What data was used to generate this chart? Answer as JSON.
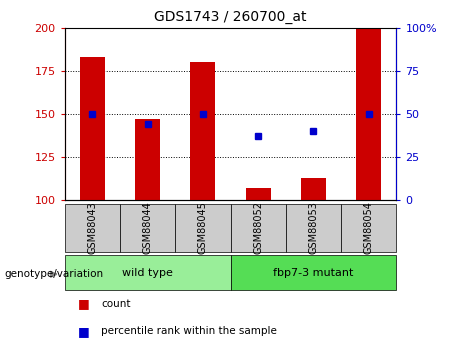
{
  "title": "GDS1743 / 260700_at",
  "categories": [
    "GSM88043",
    "GSM88044",
    "GSM88045",
    "GSM88052",
    "GSM88053",
    "GSM88054"
  ],
  "count_values": [
    183,
    147,
    180,
    107,
    113,
    200
  ],
  "percentile_values": [
    150,
    144,
    150,
    137,
    140,
    150
  ],
  "base": 100,
  "ylim_left": [
    100,
    200
  ],
  "ylim_right": [
    0,
    100
  ],
  "yticks_left": [
    100,
    125,
    150,
    175,
    200
  ],
  "yticks_right": [
    0,
    25,
    50,
    75,
    100
  ],
  "bar_color": "#cc0000",
  "dot_color": "#0000cc",
  "bar_width": 0.45,
  "groups": [
    {
      "label": "wild type",
      "span": [
        0,
        3
      ],
      "color": "#99ee99"
    },
    {
      "label": "fbp7-3 mutant",
      "span": [
        3,
        6
      ],
      "color": "#55dd55"
    }
  ],
  "group_label": "genotype/variation",
  "legend_count": "count",
  "legend_percentile": "percentile rank within the sample",
  "tick_bg_color": "#cccccc",
  "dotted_gridlines": [
    125,
    150,
    175
  ],
  "right_tick_labels": [
    "0",
    "25",
    "50",
    "75",
    "100%"
  ]
}
